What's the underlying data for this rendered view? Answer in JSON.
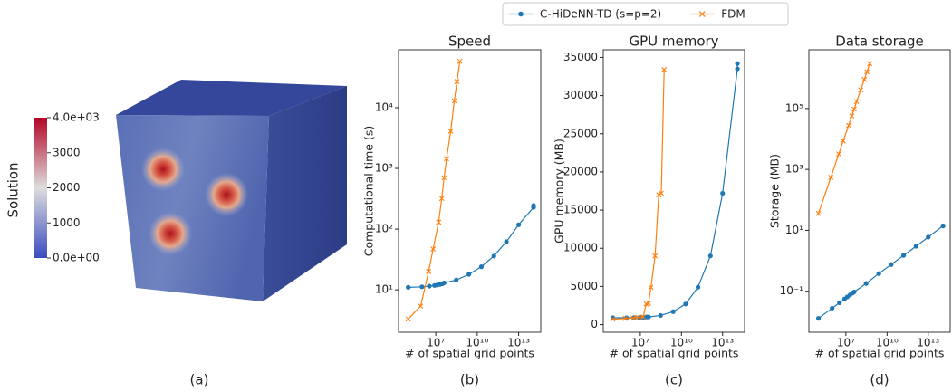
{
  "panel_a": {
    "caption": "(a)",
    "colorbar": {
      "label": "Solution",
      "lim": [
        0,
        4000
      ],
      "colormap": [
        "#3b4cc0",
        "#dddddd",
        "#b40426"
      ],
      "ticks": [
        {
          "value": 4000,
          "label": "4.0e+03"
        },
        3000,
        2000,
        1000,
        {
          "value": 0,
          "label": "0.0e+00"
        }
      ]
    }
  },
  "legend_position": "top",
  "chart_data": [
    {
      "type": "line",
      "title": "Speed",
      "xlabel": "# of spatial grid points",
      "ylabel": "Computational time (s)",
      "caption": "(b)",
      "xlog": true,
      "ylog": true,
      "xlim": [
        20000,
        400000000000000.0
      ],
      "ylim": [
        2,
        90000
      ],
      "xticks": [
        {
          "value": 10000000.0,
          "label": "10⁷"
        },
        {
          "value": 10000000000.0,
          "label": "10¹⁰"
        },
        {
          "value": 10000000000000.0,
          "label": "10¹³"
        }
      ],
      "yticks": [
        {
          "value": 10,
          "label": "10¹"
        },
        {
          "value": 100,
          "label": "10²"
        },
        {
          "value": 1000,
          "label": "10³"
        },
        {
          "value": 10000,
          "label": "10⁴"
        }
      ],
      "series": [
        {
          "name": "C-HiDeNN-TD (s=p=2)",
          "color": "#1f77b4",
          "marker": "o",
          "x": [
            100000.0,
            1000000.0,
            3400000.0,
            8000000.0,
            12500000.0,
            20000000.0,
            30000000.0,
            40000000.0,
            300000000.0,
            2500000000.0,
            20000000000.0,
            160000000000.0,
            1300000000000.0,
            10000000000000.0,
            120000000000000.0,
            120000000000000.0
          ],
          "values": [
            11,
            11.2,
            11.5,
            11.8,
            12,
            12.3,
            12.6,
            13,
            14.5,
            18,
            24,
            36,
            62,
            118,
            228,
            245
          ]
        },
        {
          "name": "FDM",
          "color": "#ff7f0e",
          "marker": "x",
          "x": [
            100000.0,
            800000.0,
            3000000.0,
            6400000.0,
            16000000.0,
            27000000.0,
            40000000.0,
            60000000.0,
            120000000.0,
            220000000.0,
            340000000.0,
            550000000.0
          ],
          "values": [
            3.3,
            5.4,
            20,
            47,
            130,
            320,
            700,
            1450,
            4100,
            13000,
            27000,
            58000
          ]
        }
      ]
    },
    {
      "type": "line",
      "title": "GPU memory",
      "xlabel": "# of spatial grid points",
      "ylabel": "GPU memory (MB)",
      "caption": "(c)",
      "xlog": true,
      "ylog": false,
      "xlim": [
        20000,
        400000000000000.0
      ],
      "ylim": [
        -1000,
        36000
      ],
      "xticks": [
        {
          "value": 10000000.0,
          "label": "10⁷"
        },
        {
          "value": 10000000000.0,
          "label": "10¹⁰"
        },
        {
          "value": 10000000000000.0,
          "label": "10¹³"
        }
      ],
      "yticks": [
        0,
        5000,
        10000,
        15000,
        20000,
        25000,
        30000,
        35000
      ],
      "series": [
        {
          "color": "#1f77b4",
          "marker": "o",
          "x": [
            100000.0,
            1000000.0,
            3400000.0,
            8000000.0,
            12500000.0,
            20000000.0,
            30000000.0,
            40000000.0,
            300000000.0,
            2500000000.0,
            20000000000.0,
            160000000000.0,
            1300000000000.0,
            10000000000000.0,
            120000000000000.0,
            120000000000000.0
          ],
          "values": [
            900,
            900,
            900,
            920,
            950,
            950,
            1000,
            1000,
            1200,
            1700,
            2700,
            4900,
            9000,
            17200,
            33500,
            34200
          ]
        },
        {
          "color": "#ff7f0e",
          "marker": "x",
          "x": [
            100000.0,
            800000.0,
            3000000.0,
            6400000.0,
            16000000.0,
            27000000.0,
            40000000.0,
            60000000.0,
            120000000.0,
            220000000.0,
            340000000.0,
            550000000.0
          ],
          "values": [
            700,
            800,
            850,
            950,
            1000,
            2700,
            2800,
            4900,
            9000,
            17000,
            17200,
            33400
          ]
        }
      ]
    },
    {
      "type": "line",
      "title": "Data storage",
      "xlabel": "# of spatial grid points",
      "ylabel": "Storage (MB)",
      "caption": "(d)",
      "xlog": true,
      "ylog": true,
      "xlim": [
        20000,
        400000000000000.0
      ],
      "ylim": [
        0.0045,
        8500000
      ],
      "xticks": [
        {
          "value": 10000000.0,
          "label": "10⁷"
        },
        {
          "value": 10000000000.0,
          "label": "10¹⁰"
        },
        {
          "value": 10000000000000.0,
          "label": "10¹³"
        }
      ],
      "yticks": [
        {
          "value": 0.1,
          "label": "10⁻¹"
        },
        {
          "value": 10,
          "label": "10¹"
        },
        {
          "value": 1000,
          "label": "10³"
        },
        {
          "value": 100000,
          "label": "10⁵"
        }
      ],
      "series": [
        {
          "color": "#1f77b4",
          "marker": "o",
          "x": [
            100000.0,
            1000000.0,
            3400000.0,
            8000000.0,
            12500000.0,
            20000000.0,
            30000000.0,
            40000000.0,
            300000000.0,
            2500000000.0,
            20000000000.0,
            160000000000.0,
            1300000000000.0,
            10000000000000.0,
            120000000000000.0,
            120000000000000.0
          ],
          "values": [
            0.0129,
            0.0277,
            0.042,
            0.056,
            0.065,
            0.076,
            0.087,
            0.095,
            0.18,
            0.38,
            0.75,
            1.5,
            3.0,
            6.0,
            14,
            14
          ]
        },
        {
          "color": "#ff7f0e",
          "marker": "x",
          "x": [
            100000.0,
            800000.0,
            3000000.0,
            6400000.0,
            16000000.0,
            27000000.0,
            40000000.0,
            60000000.0,
            120000000.0,
            220000000.0,
            340000000.0,
            550000000.0
          ],
          "values": [
            36,
            550,
            3200,
            8700,
            28000,
            57000,
            95000,
            170000,
            410000,
            900000,
            1600000,
            3000000
          ]
        }
      ]
    }
  ]
}
